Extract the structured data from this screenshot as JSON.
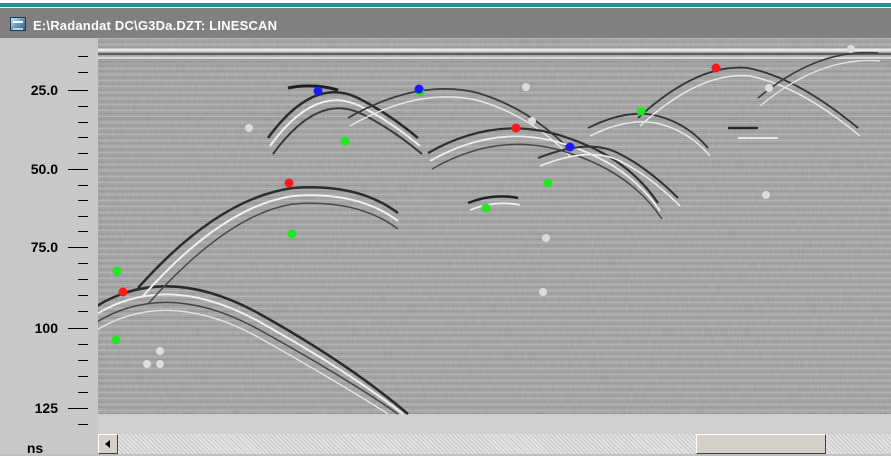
{
  "window": {
    "title": "E:\\Radandat DC\\G3Da.DZT:  LINESCAN",
    "app_icon": "radan-scan-icon"
  },
  "depth_axis": {
    "unit": "ns",
    "labels": [
      "25.0",
      "50.0",
      "75.0",
      "100",
      "125"
    ]
  },
  "colors": {
    "background_gray": "#a2a2a2",
    "green_marker": "#22e622",
    "red_marker": "#ff1a1a",
    "blue_marker": "#1a1aff",
    "gray_marker": "#dcdcdc"
  },
  "markers": [
    "green",
    "red",
    "blue",
    "gray"
  ]
}
